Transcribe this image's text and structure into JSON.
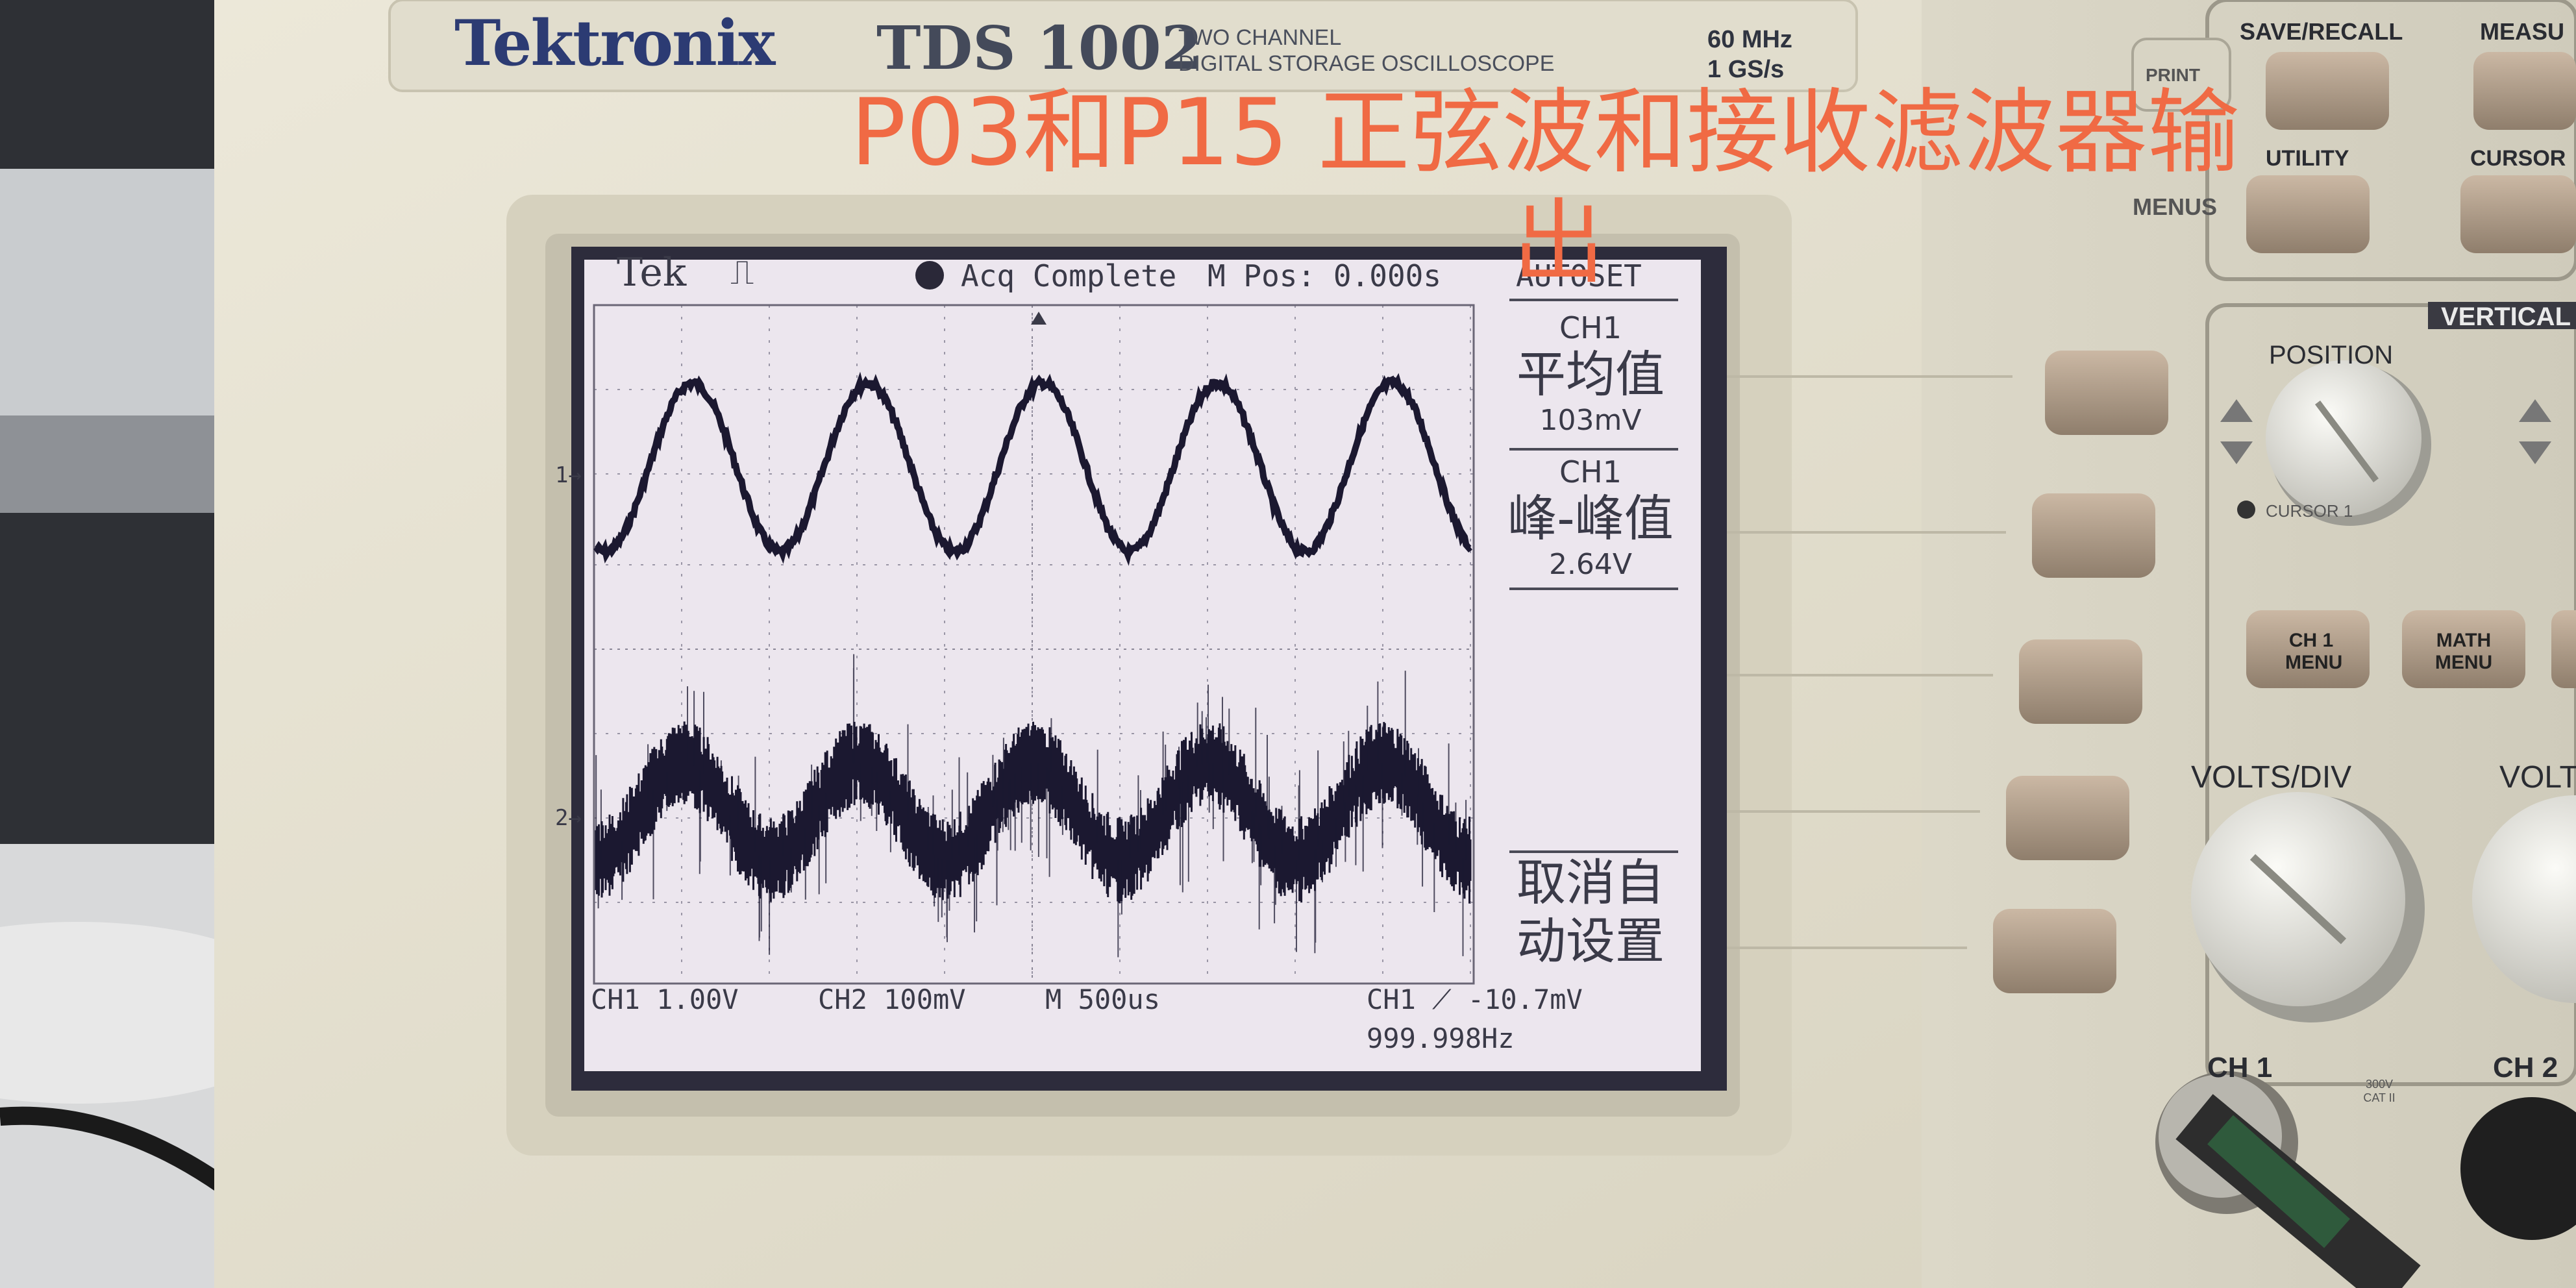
{
  "device": {
    "brand": "Tektronix",
    "model": "TDS 1002",
    "description_line1": "TWO CHANNEL",
    "description_line2": "DIGITAL STORAGE OSCILLOSCOPE",
    "bandwidth": "60 MHz",
    "sample_rate": "1 GS/s"
  },
  "caption": {
    "line1": "P03和P15 正弦波和接收滤波器输",
    "line2": "出"
  },
  "screen": {
    "logo": "Tek",
    "trigger_icon_text": "⎍",
    "status": "Acq Complete",
    "mpos": "M Pos: 0.000s",
    "menu_title": "AUTOSET",
    "meas1": {
      "channel": "CH1",
      "label": "平均值",
      "value": "103mV"
    },
    "meas2": {
      "channel": "CH1",
      "label": "峰-峰值",
      "value": "2.64V"
    },
    "undo_line1": "取消自",
    "undo_line2": "动设置",
    "ch1_marker": "1→",
    "ch2_marker": "2→",
    "bottom": {
      "ch1_scale": "CH1  1.00V",
      "ch2_scale": "CH2  100mV",
      "timebase": "M 500us",
      "trigger": "CH1 ⟋ -10.7mV",
      "frequency": "999.998Hz"
    }
  },
  "panel": {
    "save_recall": "SAVE/RECALL",
    "measure": "MEASU",
    "print": "PRINT",
    "utility": "UTILITY",
    "cursor": "CURSOR",
    "menus": "MENUS",
    "vertical": "VERTICAL",
    "position": "POSITION",
    "cursor1": "CURSOR 1",
    "ch1_menu_line1": "CH 1",
    "ch1_menu_line2": "MENU",
    "math_menu_line1": "MATH",
    "math_menu_line2": "MENU",
    "volts_div": "VOLTS/DIV",
    "volts_div2": "VOLT",
    "ch1_input": "CH 1",
    "ch2_input": "CH 2",
    "cat": "300V CAT II"
  },
  "colors": {
    "caption": "#f06a44",
    "screen_bg": "#ece6ee",
    "trace": "#1b1830",
    "bezel": "#e6e2d2"
  },
  "waveforms": {
    "ch1": {
      "cycles_on_screen": 5,
      "frequency": "999.998Hz",
      "peak_to_peak": "2.64V"
    },
    "ch2": {
      "cycles_on_screen": 5,
      "noisy": true
    }
  }
}
